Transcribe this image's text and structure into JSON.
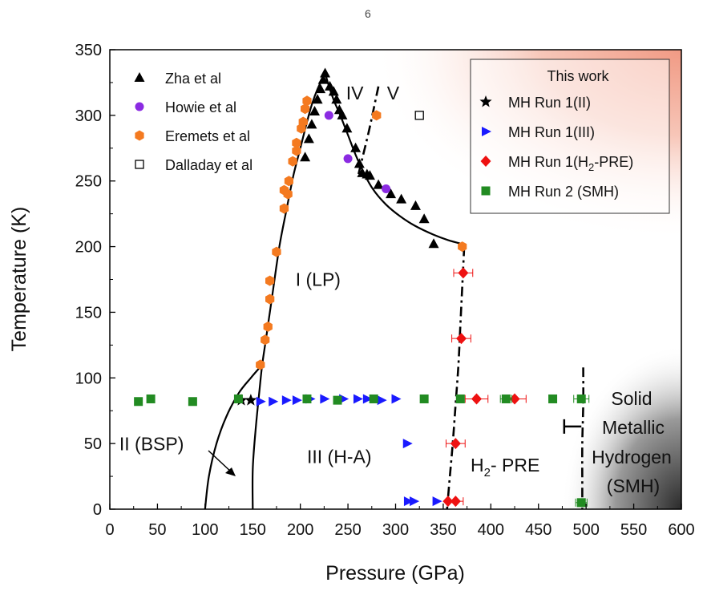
{
  "page_number": "6",
  "chart_data": {
    "type": "scatter",
    "title": "",
    "xlabel": "Pressure (GPa)",
    "ylabel": "Temperature (K)",
    "xlim": [
      0,
      600
    ],
    "ylim": [
      0,
      350
    ],
    "x_ticks": [
      0,
      50,
      100,
      150,
      200,
      250,
      300,
      350,
      400,
      450,
      500,
      550,
      600
    ],
    "y_ticks": [
      0,
      50,
      100,
      150,
      200,
      250,
      300,
      350
    ],
    "grid": false,
    "legend_left": [
      {
        "name": "Zha et al",
        "marker": "triangle",
        "color": "#000000"
      },
      {
        "name": "Howie et al",
        "marker": "circle",
        "color": "#8b2be2"
      },
      {
        "name": "Eremets et al",
        "marker": "hexagon",
        "color": "#f47a20"
      },
      {
        "name": "Dalladay et al",
        "marker": "open-square",
        "color": "#000000"
      }
    ],
    "legend_right_title": "This work",
    "legend_right": [
      {
        "name": "MH Run 1(II)",
        "marker": "star",
        "color": "#000000"
      },
      {
        "name": "MH Run 1(III)",
        "marker": "right-triangle",
        "color": "#1a1aff"
      },
      {
        "name_main": "MH Run 1(H",
        "name_sub": "2",
        "name_tail": "-PRE)",
        "marker": "diamond",
        "color": "#ee1111"
      },
      {
        "name": "MH Run 2 (SMH)",
        "marker": "square",
        "color": "#228b22"
      }
    ],
    "series": [
      {
        "name": "Zha et al",
        "marker": "triangle",
        "color": "#000000",
        "points": [
          [
            205,
            268
          ],
          [
            209,
            282
          ],
          [
            212,
            293
          ],
          [
            215,
            303
          ],
          [
            218,
            312
          ],
          [
            221,
            320
          ],
          [
            224,
            327
          ],
          [
            226,
            332
          ],
          [
            231,
            322
          ],
          [
            235,
            318
          ],
          [
            238,
            312
          ],
          [
            241,
            304
          ],
          [
            244,
            300
          ],
          [
            249,
            290
          ],
          [
            258,
            275
          ],
          [
            262,
            263
          ],
          [
            265,
            256
          ],
          [
            270,
            255
          ],
          [
            273,
            254
          ],
          [
            282,
            247
          ],
          [
            295,
            240
          ],
          [
            306,
            236
          ],
          [
            321,
            231
          ],
          [
            330,
            221
          ],
          [
            340,
            202
          ]
        ]
      },
      {
        "name": "Howie et al",
        "marker": "circle",
        "color": "#8b2be2",
        "points": [
          [
            230,
            300
          ],
          [
            250,
            267
          ],
          [
            290,
            244
          ]
        ]
      },
      {
        "name": "Eremets et al",
        "marker": "hexagon",
        "color": "#f47a20",
        "points": [
          [
            158,
            110
          ],
          [
            163,
            129
          ],
          [
            166,
            139
          ],
          [
            168,
            160
          ],
          [
            168,
            174
          ],
          [
            175,
            196
          ],
          [
            183,
            229
          ],
          [
            183,
            243
          ],
          [
            187,
            240
          ],
          [
            188,
            250
          ],
          [
            192,
            265
          ],
          [
            196,
            273
          ],
          [
            196,
            279
          ],
          [
            201,
            290
          ],
          [
            203,
            295
          ],
          [
            205,
            305
          ],
          [
            207,
            311
          ],
          [
            280,
            300
          ],
          [
            370,
            200
          ]
        ]
      },
      {
        "name": "Dalladay et al",
        "marker": "open-square",
        "color": "#000000",
        "points": [
          [
            325,
            300
          ]
        ]
      },
      {
        "name": "MH Run 1(II)",
        "marker": "star",
        "color": "#000000",
        "points": [
          [
            138,
            83
          ],
          [
            148,
            83
          ]
        ]
      },
      {
        "name": "MH Run 1(III)",
        "marker": "right-triangle",
        "color": "#1a1aff",
        "points": [
          [
            158,
            82
          ],
          [
            171,
            82
          ],
          [
            185,
            83
          ],
          [
            196,
            83
          ],
          [
            210,
            84
          ],
          [
            225,
            84
          ],
          [
            245,
            84
          ],
          [
            260,
            84
          ],
          [
            270,
            84
          ],
          [
            285,
            83
          ],
          [
            300,
            84
          ],
          [
            312,
            50
          ],
          [
            313,
            6
          ],
          [
            319,
            6
          ],
          [
            343,
            6
          ]
        ]
      },
      {
        "name": "MH Run 1(H2-PRE)",
        "marker": "diamond",
        "color": "#ee1111",
        "points": [
          [
            371,
            180
          ],
          [
            369,
            130
          ],
          [
            385,
            84
          ],
          [
            425,
            84
          ],
          [
            363,
            50
          ],
          [
            355,
            6
          ],
          [
            363,
            6
          ]
        ],
        "xerr": [
          10,
          10,
          12,
          12,
          10,
          0,
          8
        ]
      },
      {
        "name": "MH Run 2 (SMH)",
        "marker": "square",
        "color": "#228b22",
        "points": [
          [
            30,
            82
          ],
          [
            43,
            84
          ],
          [
            87,
            82
          ],
          [
            135,
            84
          ],
          [
            207,
            84
          ],
          [
            239,
            83
          ],
          [
            277,
            84
          ],
          [
            330,
            84
          ],
          [
            368,
            84
          ],
          [
            416,
            84
          ],
          [
            465,
            84
          ],
          [
            495,
            84
          ],
          [
            495,
            5
          ]
        ],
        "xerr": [
          0,
          0,
          0,
          0,
          0,
          0,
          0,
          0,
          0,
          6,
          0,
          8,
          6
        ]
      }
    ],
    "phase_labels": [
      {
        "text": "I (LP)",
        "x": 195,
        "y": 170
      },
      {
        "text": "II (BSP)",
        "x": 10,
        "y": 45
      },
      {
        "text": "III (H-A)",
        "x": 207,
        "y": 35
      },
      {
        "text": "IV",
        "x": 248,
        "y": 312
      },
      {
        "text": "V",
        "x": 291,
        "y": 312
      }
    ],
    "h2_pre_label": {
      "main": "H",
      "sub": "2",
      "tail": "- PRE",
      "x": 373,
      "y": 30
    },
    "smh_label": [
      "Solid",
      "Metallic",
      "Hydrogen",
      "(SMH)"
    ],
    "smh_error_bar": {
      "x": 495,
      "y": 63,
      "err": 18
    },
    "boundaries": {
      "I_III_left": [
        [
          200,
          262
        ],
        [
          205,
          276
        ],
        [
          210,
          290
        ],
        [
          215,
          303
        ],
        [
          220,
          316
        ],
        [
          224,
          326
        ],
        [
          227,
          332
        ]
      ],
      "I_II_upper": [
        [
          150,
          0
        ],
        [
          150,
          30
        ],
        [
          153,
          60
        ],
        [
          157,
          90
        ],
        [
          160,
          110
        ],
        [
          164,
          130
        ],
        [
          170,
          160
        ],
        [
          178,
          200
        ],
        [
          186,
          230
        ],
        [
          193,
          255
        ],
        [
          200,
          275
        ],
        [
          207,
          295
        ],
        [
          212,
          308
        ],
        [
          218,
          320
        ],
        [
          226,
          332
        ]
      ],
      "II_III": [
        [
          100,
          0
        ],
        [
          104,
          25
        ],
        [
          112,
          50
        ],
        [
          122,
          70
        ],
        [
          135,
          88
        ],
        [
          148,
          100
        ],
        [
          160,
          110
        ]
      ],
      "peak_right": [
        [
          226,
          332
        ],
        [
          231,
          320
        ],
        [
          236,
          310
        ],
        [
          242,
          300
        ],
        [
          250,
          285
        ],
        [
          258,
          270
        ],
        [
          266,
          257
        ],
        [
          276,
          244
        ],
        [
          290,
          232
        ],
        [
          305,
          223
        ],
        [
          320,
          216
        ],
        [
          340,
          209
        ],
        [
          355,
          205
        ],
        [
          370,
          202
        ]
      ],
      "IV_V_dashdot": [
        [
          282,
          322
        ],
        [
          277,
          305
        ],
        [
          272,
          288
        ],
        [
          266,
          270
        ],
        [
          261,
          255
        ]
      ],
      "H2PRE_dashdot": [
        [
          372,
          200
        ],
        [
          370,
          170
        ],
        [
          368,
          140
        ],
        [
          366,
          110
        ],
        [
          363,
          80
        ],
        [
          360,
          50
        ],
        [
          357,
          25
        ],
        [
          354,
          0
        ]
      ],
      "SMH_dashdot": [
        [
          497,
          108
        ],
        [
          497,
          80
        ],
        [
          496,
          50
        ],
        [
          496,
          20
        ],
        [
          496,
          0
        ]
      ]
    },
    "annotation_arrow": {
      "from": [
        118,
        44
      ],
      "to": [
        145,
        25
      ]
    }
  }
}
